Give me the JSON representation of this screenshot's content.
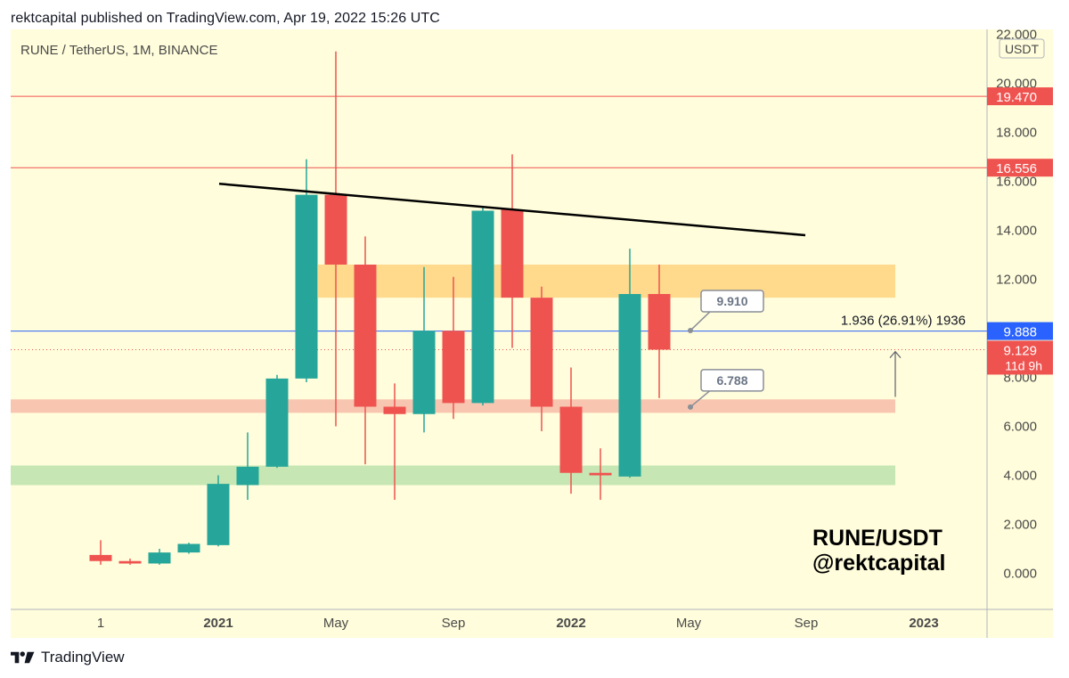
{
  "header": {
    "published": "rektcapital published on TradingView.com, Apr 19, 2022 15:26 UTC"
  },
  "symbol_label": "RUNE / TetherUS, 1M, BINANCE",
  "currency_badge": "USDT",
  "brand": {
    "line1": "RUNE/USDT",
    "line2": "@rektcapital"
  },
  "footer": {
    "logo_text": "TradingView",
    "logo_icon": "tradingview-logo-icon"
  },
  "colors": {
    "up": "#26a69a",
    "down": "#ef5350",
    "resistance": "#ef5350",
    "current_line": "#2962ff",
    "bg": "#fffddb"
  },
  "chart_data": {
    "type": "candlestick",
    "title": "RUNE / TetherUS, 1M, BINANCE",
    "y_axis": {
      "min": 0,
      "max": 22,
      "ticks": [
        "0.000",
        "2.000",
        "4.000",
        "6.000",
        "8.000",
        "12.000",
        "14.000",
        "16.000",
        "18.000",
        "20.000",
        "22.000"
      ],
      "unit": "USDT"
    },
    "x_axis": {
      "labels": [
        "1",
        "2021",
        "May",
        "Sep",
        "2022",
        "May",
        "Sep",
        "2023"
      ]
    },
    "candles": [
      {
        "date": "2020-09",
        "open": 0.75,
        "high": 1.35,
        "low": 0.35,
        "close": 0.5
      },
      {
        "date": "2020-10",
        "open": 0.5,
        "high": 0.6,
        "low": 0.35,
        "close": 0.4
      },
      {
        "date": "2020-11",
        "open": 0.4,
        "high": 1.0,
        "low": 0.35,
        "close": 0.85
      },
      {
        "date": "2020-12",
        "open": 0.85,
        "high": 1.25,
        "low": 0.8,
        "close": 1.2
      },
      {
        "date": "2021-01",
        "open": 1.15,
        "high": 4.0,
        "low": 1.1,
        "close": 3.65
      },
      {
        "date": "2021-02",
        "open": 3.6,
        "high": 5.75,
        "low": 3.0,
        "close": 4.35
      },
      {
        "date": "2021-03",
        "open": 4.35,
        "high": 8.1,
        "low": 4.3,
        "close": 7.95
      },
      {
        "date": "2021-04",
        "open": 7.95,
        "high": 16.9,
        "low": 7.8,
        "close": 15.45
      },
      {
        "date": "2021-05",
        "open": 15.45,
        "high": 21.3,
        "low": 6.0,
        "close": 12.6
      },
      {
        "date": "2021-06",
        "open": 12.6,
        "high": 13.75,
        "low": 4.45,
        "close": 6.8
      },
      {
        "date": "2021-07",
        "open": 6.8,
        "high": 7.75,
        "low": 3.0,
        "close": 6.5
      },
      {
        "date": "2021-08",
        "open": 6.5,
        "high": 12.5,
        "low": 5.75,
        "close": 9.9
      },
      {
        "date": "2021-09",
        "open": 9.9,
        "high": 12.1,
        "low": 6.3,
        "close": 6.95
      },
      {
        "date": "2021-10",
        "open": 6.95,
        "high": 15.0,
        "low": 6.85,
        "close": 14.8
      },
      {
        "date": "2021-11",
        "open": 14.85,
        "high": 17.1,
        "low": 9.2,
        "close": 11.25
      },
      {
        "date": "2021-12",
        "open": 11.25,
        "high": 11.7,
        "low": 5.8,
        "close": 6.8
      },
      {
        "date": "2022-01",
        "open": 6.8,
        "high": 8.4,
        "low": 3.25,
        "close": 4.1
      },
      {
        "date": "2022-02",
        "open": 4.1,
        "high": 5.1,
        "low": 3.0,
        "close": 4.0
      },
      {
        "date": "2022-03",
        "open": 3.95,
        "high": 13.25,
        "low": 3.9,
        "close": 11.4
      },
      {
        "date": "2022-04",
        "open": 11.4,
        "high": 12.6,
        "low": 7.15,
        "close": 9.129
      }
    ],
    "horizontal_lines": [
      {
        "value": 19.47,
        "label": "19.470",
        "color": "#ef5350"
      },
      {
        "value": 16.556,
        "label": "16.556",
        "color": "#ef5350"
      },
      {
        "value": 9.888,
        "label": "9.888",
        "color": "#2962ff"
      }
    ],
    "zones": [
      {
        "from": 11.25,
        "to": 12.6,
        "color": "#ffd98c"
      },
      {
        "from": 6.55,
        "to": 7.1,
        "color": "#f8c6b0"
      },
      {
        "from": 3.6,
        "to": 4.4,
        "color": "#c6e6b3"
      }
    ],
    "trendline": {
      "from": {
        "date": "2020-12",
        "value": 15.9
      },
      "to": {
        "date": "2022-09",
        "value": 13.8
      }
    },
    "callouts": [
      {
        "label": "9.910",
        "value": 9.91
      },
      {
        "label": "6.788",
        "value": 6.788
      }
    ],
    "price_label": {
      "value": "9.129",
      "countdown": "11d 9h"
    },
    "measurement": "1.936 (26.91%) 1936"
  }
}
